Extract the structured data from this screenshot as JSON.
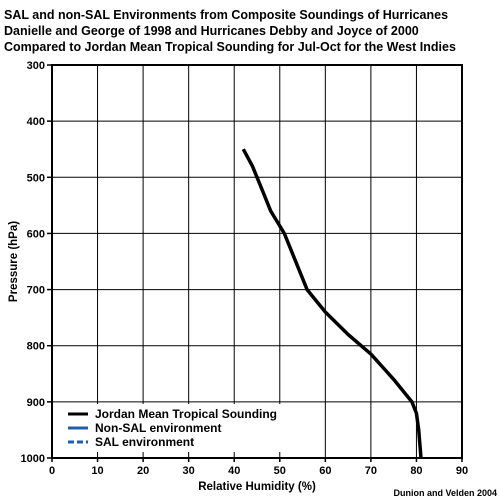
{
  "chart_data": {
    "type": "line",
    "title_lines": [
      "SAL and non-SAL Environments from Composite Soundings of Hurricanes",
      "Danielle and George of 1998 and Hurricanes Debby and Joyce of 2000",
      "Compared to Jordan Mean Tropical Sounding for Jul-Oct for the West Indies"
    ],
    "xlabel": "Relative Humidity (%)",
    "ylabel": "Pressure (hPa)",
    "xlim": [
      0,
      90
    ],
    "ylim": [
      300,
      1000
    ],
    "y_inverted": true,
    "x_ticks": [
      0,
      10,
      20,
      30,
      40,
      50,
      60,
      70,
      80,
      90
    ],
    "y_ticks": [
      300,
      400,
      500,
      600,
      700,
      800,
      900,
      1000
    ],
    "grid": true,
    "legend_position": "bottom-left",
    "credit": "Dunion and Velden 2004",
    "series": [
      {
        "name": "Jordan Mean Tropical Sounding",
        "color": "#000000",
        "style": "solid",
        "points": [
          {
            "x": 42,
            "y": 450
          },
          {
            "x": 44,
            "y": 480
          },
          {
            "x": 46,
            "y": 520
          },
          {
            "x": 48,
            "y": 560
          },
          {
            "x": 51,
            "y": 600
          },
          {
            "x": 56,
            "y": 700
          },
          {
            "x": 60,
            "y": 740
          },
          {
            "x": 65,
            "y": 780
          },
          {
            "x": 70,
            "y": 815
          },
          {
            "x": 75,
            "y": 860
          },
          {
            "x": 79,
            "y": 900
          },
          {
            "x": 80,
            "y": 920
          },
          {
            "x": 80.5,
            "y": 950
          },
          {
            "x": 81,
            "y": 1000
          }
        ]
      },
      {
        "name": "Non-SAL environment",
        "color": "#1f5faa",
        "style": "solid",
        "points": []
      },
      {
        "name": "SAL environment",
        "color": "#1f5faa",
        "style": "dashed",
        "points": []
      }
    ]
  }
}
